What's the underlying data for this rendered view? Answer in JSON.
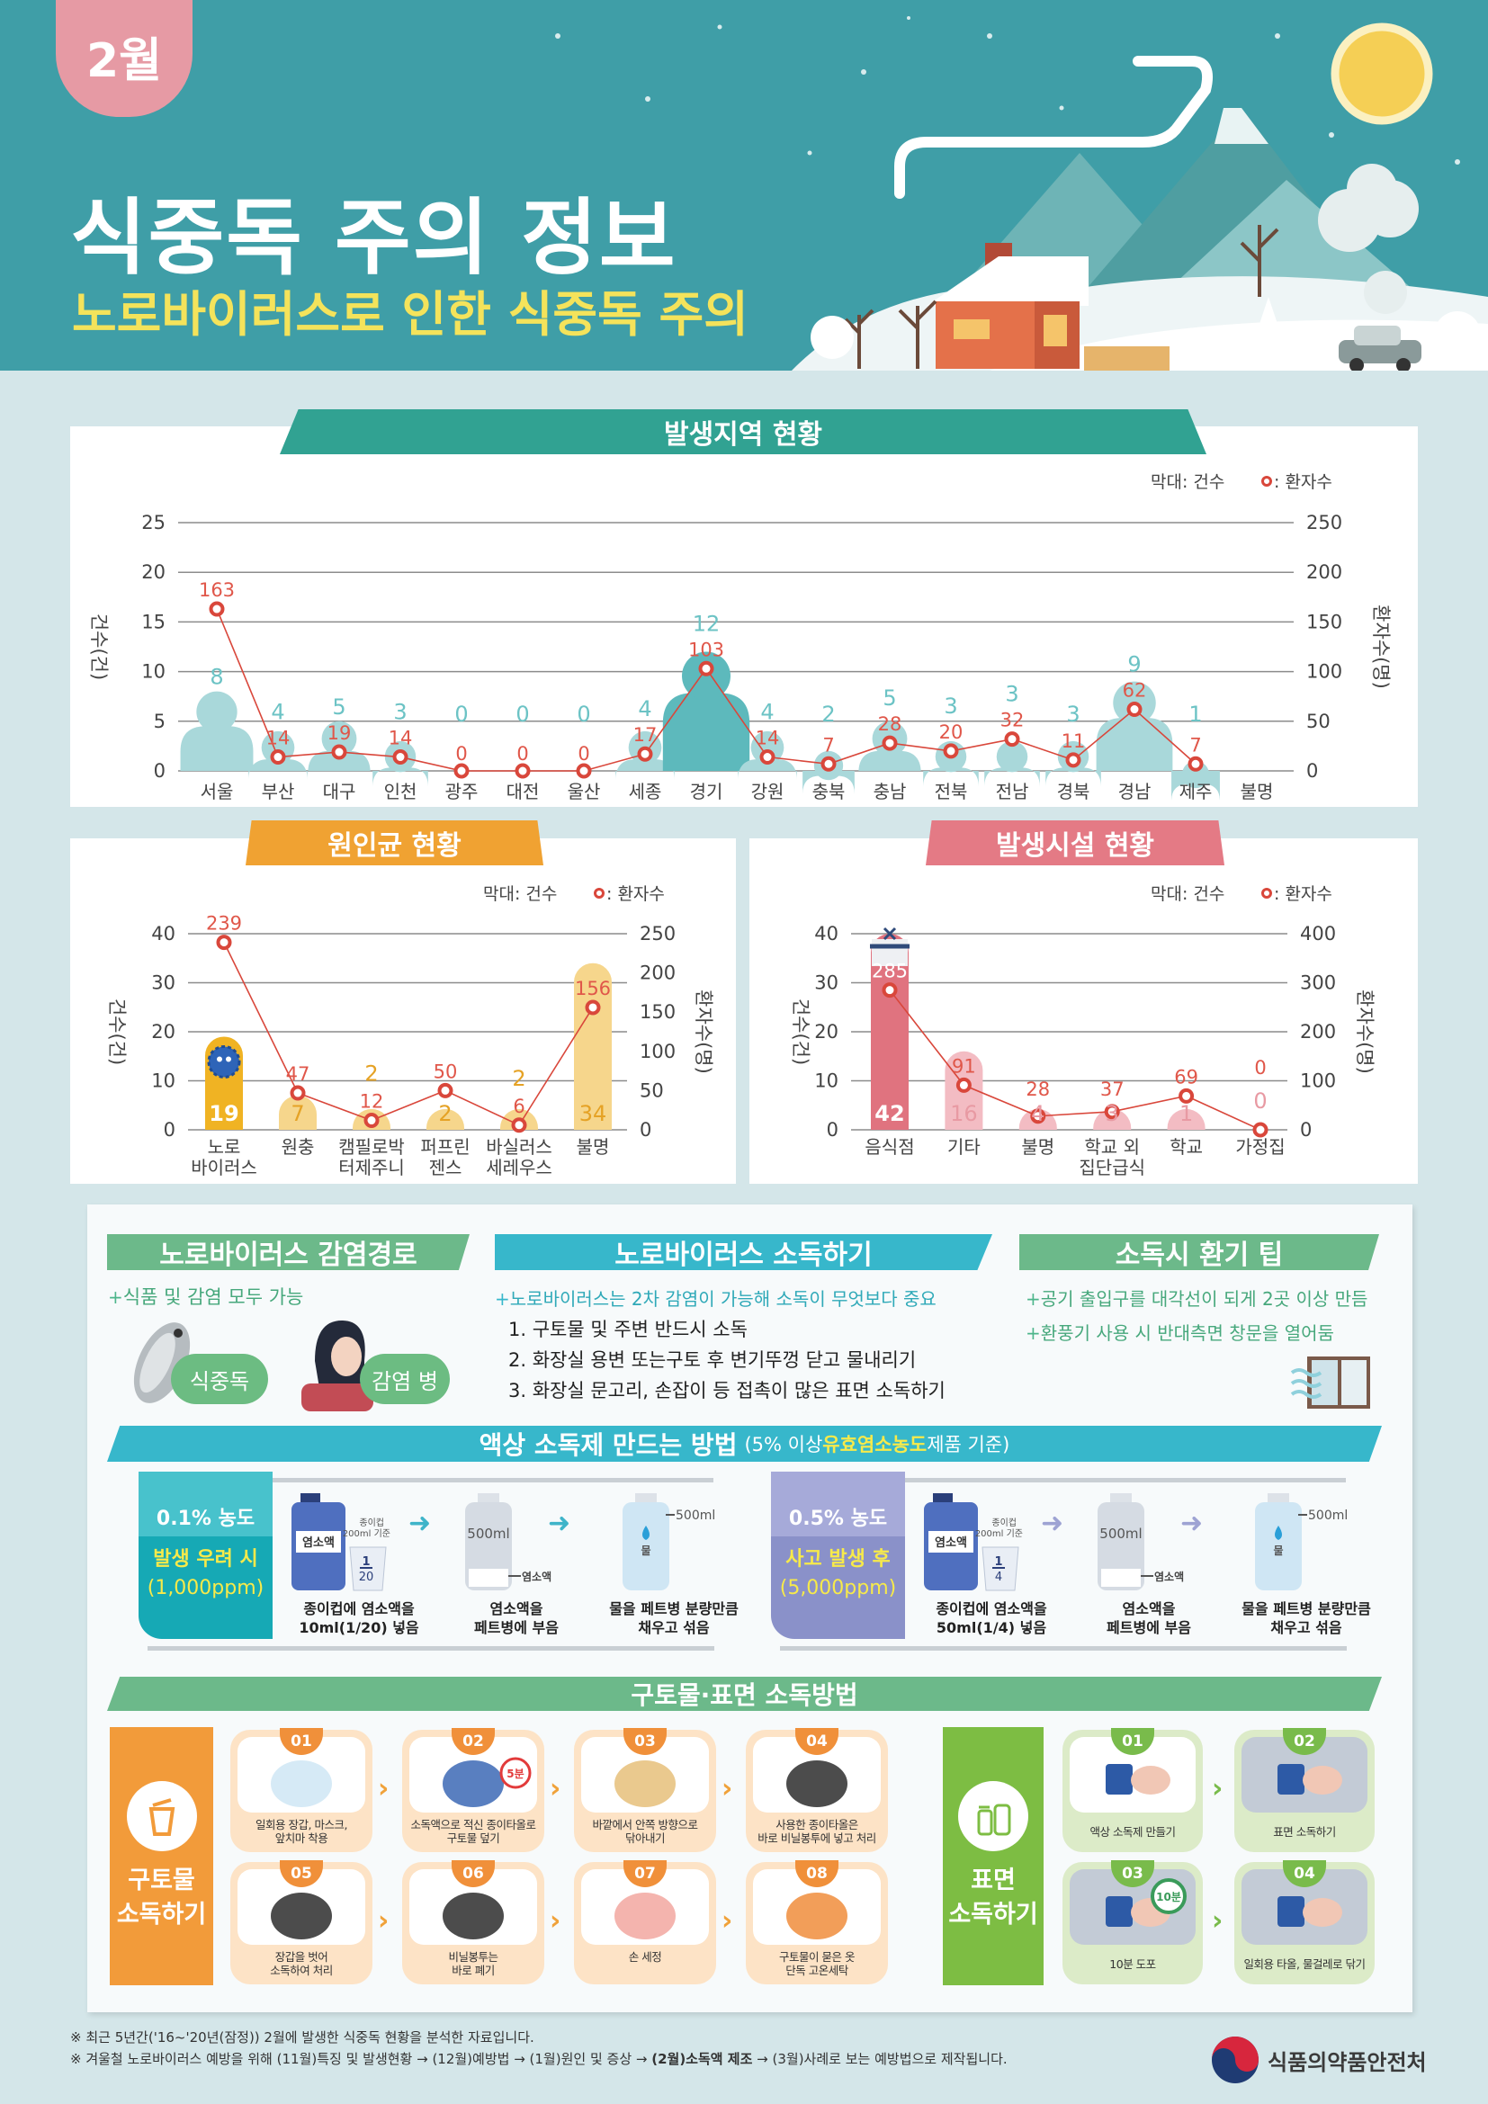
{
  "header": {
    "month_tab": "2월",
    "title": "식중독 주의 정보",
    "subtitle": "노로바이러스로 인한 식중독 주의"
  },
  "colors": {
    "header_bg": "#3f9ea7",
    "month_tab": "#e69aa4",
    "subtitle": "#f4e35b",
    "region_bar": "#a9d8da",
    "region_bar_highlight": "#5db9bc",
    "pathogen_bar": "#f6d68c",
    "pathogen_bar_highlight": "#f0b323",
    "facility_bar": "#f3bcc3",
    "facility_bar_highlight": "#e0737f",
    "patient_line": "#d9473b"
  },
  "legend": {
    "bar": "막대: 건수",
    "line": ": 환자수"
  },
  "chart_data": [
    {
      "type": "bar+line",
      "title": "발생지역 현황",
      "ylabel": "건수(건)",
      "y2label": "환자수(명)",
      "categories": [
        "서울",
        "부산",
        "대구",
        "인천",
        "광주",
        "대전",
        "울산",
        "세종",
        "경기",
        "강원",
        "충북",
        "충남",
        "전북",
        "전남",
        "경북",
        "경남",
        "제주",
        "불명"
      ],
      "series": [
        {
          "name": "건수",
          "kind": "bar",
          "axis": "left",
          "values": [
            8,
            4,
            5,
            3,
            0,
            0,
            0,
            4,
            12,
            4,
            2,
            5,
            3,
            3,
            3,
            9,
            1,
            null
          ]
        },
        {
          "name": "환자수",
          "kind": "line",
          "axis": "right",
          "values": [
            163,
            14,
            19,
            14,
            0,
            0,
            0,
            17,
            103,
            14,
            7,
            28,
            20,
            32,
            11,
            62,
            7,
            null
          ]
        }
      ],
      "highlight": 8,
      "ylim": [
        0,
        25
      ],
      "yticks": [
        0,
        5,
        10,
        15,
        20,
        25
      ],
      "y2lim": [
        0,
        250
      ],
      "y2ticks": [
        0,
        50,
        100,
        150,
        200,
        250
      ],
      "grid": true,
      "legend": "top-right"
    },
    {
      "type": "bar+line",
      "title": "원인균 현황",
      "ylabel": "건수(건)",
      "y2label": "환자수(명)",
      "categories": [
        [
          "노로",
          "바이러스"
        ],
        [
          "원충"
        ],
        [
          "캠필로박",
          "터제주니"
        ],
        [
          "퍼프린",
          "젠스"
        ],
        [
          "바실러스",
          "세레우스"
        ],
        [
          "불명"
        ]
      ],
      "series": [
        {
          "name": "건수",
          "kind": "bar",
          "axis": "left",
          "values": [
            19,
            7,
            2,
            2,
            2,
            34
          ]
        },
        {
          "name": "환자수",
          "kind": "line",
          "axis": "right",
          "values": [
            239,
            47,
            12,
            50,
            6,
            156
          ]
        }
      ],
      "highlight": 0,
      "ylim": [
        0,
        40
      ],
      "yticks": [
        0,
        10,
        20,
        30,
        40
      ],
      "y2lim": [
        0,
        250
      ],
      "y2ticks": [
        0,
        50,
        100,
        150,
        200,
        250
      ],
      "grid": true,
      "legend": "top-right"
    },
    {
      "type": "bar+line",
      "title": "발생시설 현황",
      "ylabel": "건수(건)",
      "y2label": "환자수(명)",
      "categories": [
        [
          "음식점"
        ],
        [
          "기타"
        ],
        [
          "불명"
        ],
        [
          "학교 외",
          "집단급식"
        ],
        [
          "학교"
        ],
        [
          "가정집"
        ]
      ],
      "series": [
        {
          "name": "건수",
          "kind": "bar",
          "axis": "left",
          "values": [
            42,
            16,
            4,
            3,
            1,
            0
          ]
        },
        {
          "name": "환자수",
          "kind": "line",
          "axis": "right",
          "values": [
            285,
            91,
            28,
            37,
            69,
            0
          ]
        }
      ],
      "highlight": 0,
      "ylim": [
        0,
        40
      ],
      "yticks": [
        0,
        10,
        20,
        30,
        40
      ],
      "y2lim": [
        0,
        400
      ],
      "y2ticks": [
        0,
        100,
        200,
        300,
        400
      ],
      "grid": true,
      "legend": "top-right"
    }
  ],
  "route": {
    "title": "노로바이러스 감염경로",
    "line": "식품 및 감염 모두 가능",
    "pill_food": "식중독",
    "pill_infect": "감염 병"
  },
  "disinfect": {
    "title": "노로바이러스 소독하기",
    "line": "노로바이러스는 2차 감염이 가능해 소독이 무엇보다 중요",
    "items": [
      "1. 구토물 및 주변 반드시 소독",
      "2. 화장실 용변 또는구토 후 변기뚜껑 닫고 물내리기",
      "3. 화장실 문고리, 손잡이 등 접촉이 많은 표면 소독하기"
    ]
  },
  "vent": {
    "title": "소독시 환기 팁",
    "items": [
      "공기 출입구를 대각선이 되게 2곳 이상 만듬",
      "환풍기 사용 시 반대측면 창문을 열어둠"
    ]
  },
  "liquid": {
    "title": "액상 소독제 만드는 방법",
    "note_pre": "(5% 이상 ",
    "note_highlight": "유효염소농도",
    "note_post": " 제품 기준)",
    "labels": {
      "bleach": "염소액",
      "cup_basis": [
        "종이컵",
        "200ml 기준"
      ],
      "bottle_volume": "500ml",
      "bleach_mark": "염소액",
      "water": "물",
      "fill_mark": "500ml"
    },
    "methods": [
      {
        "concentration": "0.1% 농도",
        "situation": "발생 우려 시",
        "ppm": "(1,000ppm)",
        "fraction_num": "1",
        "fraction_den": "20",
        "steps": [
          [
            "종이컵에 염소액을",
            "10ml(1/20) 넣음"
          ],
          [
            "염소액을",
            "페트병에 부음"
          ],
          [
            "물을 페트병 분량만큼",
            "채우고 섞음"
          ]
        ]
      },
      {
        "concentration": "0.5% 농도",
        "situation": "사고 발생 후",
        "ppm": "(5,000ppm)",
        "fraction_num": "1",
        "fraction_den": "4",
        "steps": [
          [
            "종이컵에 염소액을",
            "50ml(1/4) 넣음"
          ],
          [
            "염소액을",
            "페트병에 부음"
          ],
          [
            "물을 페트병 분량만큼",
            "채우고 섞음"
          ]
        ]
      }
    ]
  },
  "methods": {
    "title": "구토물·표면 소독방법",
    "vomit": {
      "title": [
        "구토물",
        "소독하기"
      ],
      "timer": "5분",
      "steps": [
        {
          "num": "01",
          "text": [
            "일회용 장갑, 마스크,",
            "앞치마 착용"
          ]
        },
        {
          "num": "02",
          "text": [
            "소독액으로 적신 종이타올로",
            "구토물 덮기"
          ]
        },
        {
          "num": "03",
          "text": [
            "바깥에서 안쪽 방향으로",
            "닦아내기"
          ]
        },
        {
          "num": "04",
          "text": [
            "사용한 종이타올은",
            "바로 비닐봉투에 넣고 처리"
          ]
        },
        {
          "num": "05",
          "text": [
            "장갑을 벗어",
            "소독하여 처리"
          ]
        },
        {
          "num": "06",
          "text": [
            "비닐봉투는",
            "바로 폐기"
          ]
        },
        {
          "num": "07",
          "text": [
            "손 세정",
            ""
          ]
        },
        {
          "num": "08",
          "text": [
            "구토물이 묻은 옷",
            "단독 고온세탁"
          ]
        }
      ]
    },
    "surface": {
      "title": [
        "표면",
        "소독하기"
      ],
      "timer": "10분",
      "steps": [
        {
          "num": "01",
          "text": "액상 소독제 만들기"
        },
        {
          "num": "02",
          "text": "표면 소독하기"
        },
        {
          "num": "03",
          "text": "10분 도포"
        },
        {
          "num": "04",
          "text": "일회용 타올, 물걸레로 닦기"
        }
      ]
    }
  },
  "footer": {
    "note1": "※ 최근 5년간('16~'20년(잠정)) 2월에 발생한 식중독 현황을 분석한 자료입니다.",
    "note2_pre": "※ 겨울철 노로바이러스 예방을 위해 (11월)특징 및 발생현황 → (12월)예방법 → (1월)원인 및 증상 → ",
    "note2_bold": "(2월)소독액 제조",
    "note2_post": " → (3월)사례로 보는 예방법으로 제작됩니다.",
    "logo_text": "식품의약품안전처"
  }
}
